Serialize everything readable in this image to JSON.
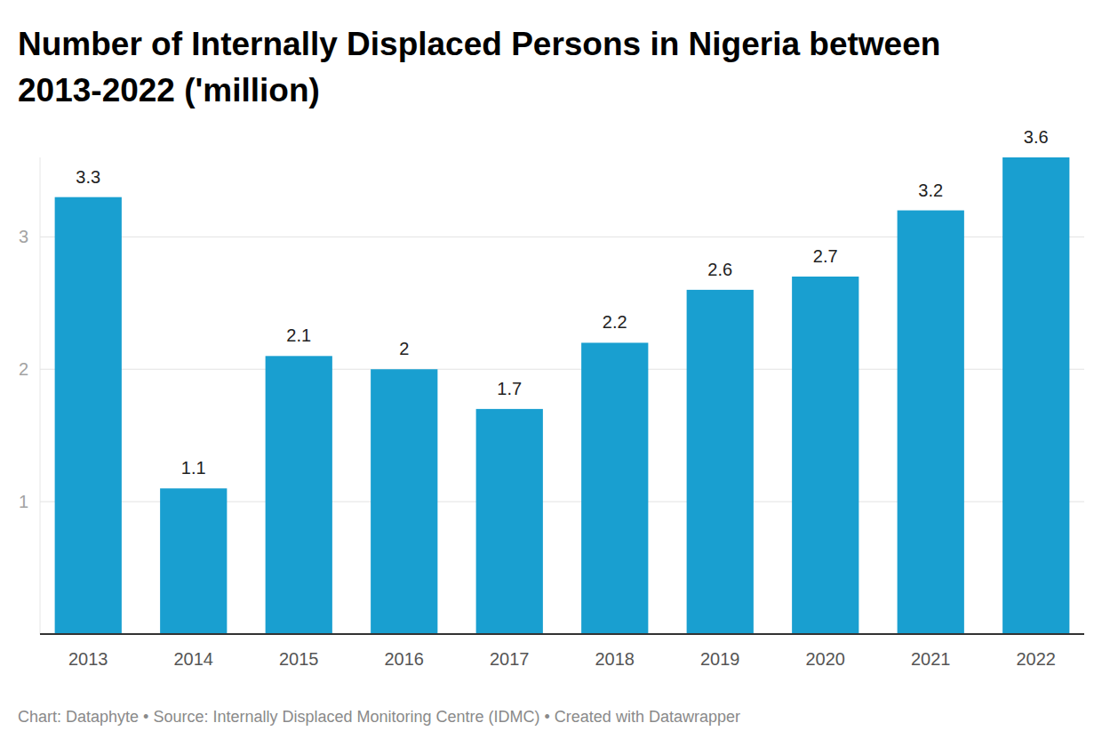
{
  "chart_data": {
    "type": "bar",
    "title": "Number of Internally Displaced Persons in Nigeria between 2013-2022 ('million)",
    "source": "Chart: Dataphyte • Source: Internally Displaced Monitoring Centre (IDMC) • Created with Datawrapper",
    "categories": [
      "2013",
      "2014",
      "2015",
      "2016",
      "2017",
      "2018",
      "2019",
      "2020",
      "2021",
      "2022"
    ],
    "values": [
      3.3,
      1.1,
      2.1,
      2,
      1.7,
      2.2,
      2.6,
      2.7,
      3.2,
      3.6
    ],
    "color": "#199fd0",
    "ylim": [
      0,
      3.6
    ],
    "yticks": [
      1,
      2,
      3
    ],
    "grid": true,
    "data_labels": true
  }
}
